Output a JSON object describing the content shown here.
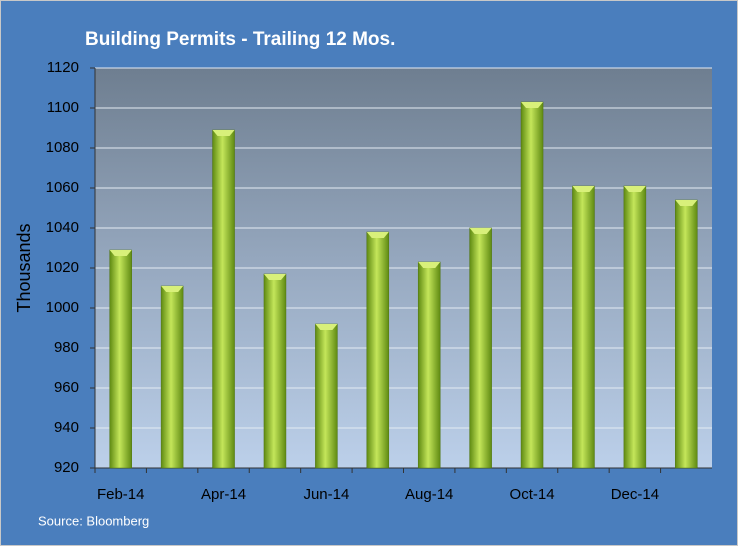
{
  "chart_data": {
    "type": "bar",
    "title": "Building Permits - Trailing 12 Mos.",
    "y_label": "Thousands",
    "source": "Source: Bloomberg",
    "categories": [
      "Feb-14",
      null,
      "Apr-14",
      null,
      "Jun-14",
      null,
      "Aug-14",
      null,
      "Oct-14",
      null,
      "Dec-14",
      null
    ],
    "values": [
      1029,
      1011,
      1089,
      1017,
      992,
      1038,
      1023,
      1040,
      1103,
      1061,
      1061,
      1054
    ],
    "color": "#8fbf2a",
    "ylim": [
      920,
      1120
    ],
    "yticks": [
      920,
      940,
      960,
      980,
      1000,
      1020,
      1040,
      1060,
      1080,
      1100,
      1120
    ],
    "grid": true
  }
}
